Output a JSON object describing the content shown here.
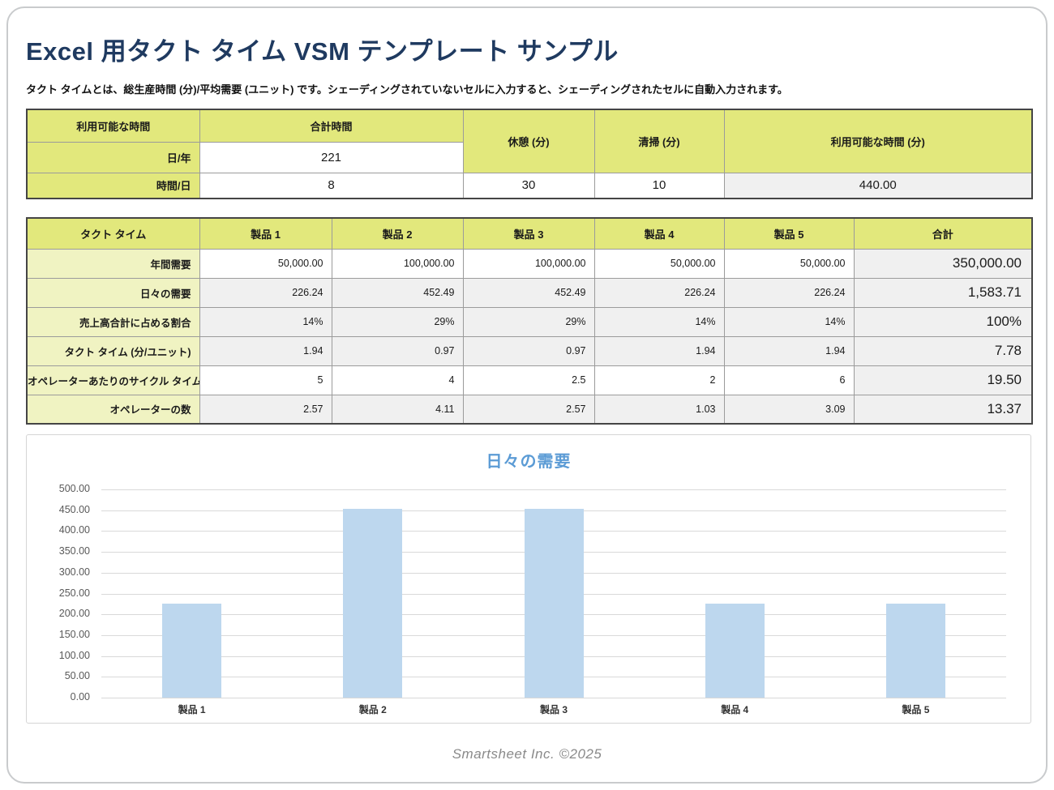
{
  "page": {
    "title": "Excel 用タクト タイム VSM テンプレート サンプル",
    "subtitle": "タクト タイムとは、総生産時間 (分)/平均需要 (ユニット) です。シェーディングされていないセルに入力すると、シェーディングされたセルに自動入力されます。",
    "footer": "Smartsheet Inc. ©2025"
  },
  "colors": {
    "title_navy": "#1f3a60",
    "header_green": "#e2e87c",
    "label_pale_yellow": "#f0f3c2",
    "shaded_gray": "#f0f0f0",
    "bar_blue": "#bdd7ee",
    "chart_title_blue": "#5b9bd5",
    "grid_gray": "#d9d9d9"
  },
  "availability_table": {
    "corner_header": "利用可能な時間",
    "total_time_header": "合計時間",
    "break_header": "休憩 (分)",
    "cleaning_header": "清掃 (分)",
    "available_header": "利用可能な時間 (分)",
    "days_per_year_label": "日/年",
    "days_per_year_value": "221",
    "hours_per_day_label": "時間/日",
    "hours_per_day_value": "8",
    "break_value": "30",
    "cleaning_value": "10",
    "available_value": "440.00"
  },
  "takt_table": {
    "headers": [
      "タクト タイム",
      "製品 1",
      "製品 2",
      "製品 3",
      "製品 4",
      "製品 5",
      "合計"
    ],
    "rows": [
      {
        "label": "年間需要",
        "values": [
          "50,000.00",
          "100,000.00",
          "100,000.00",
          "50,000.00",
          "50,000.00"
        ],
        "total": "350,000.00",
        "shaded": false
      },
      {
        "label": "日々の需要",
        "values": [
          "226.24",
          "452.49",
          "452.49",
          "226.24",
          "226.24"
        ],
        "total": "1,583.71",
        "shaded": true
      },
      {
        "label": "売上高合計に占める割合",
        "values": [
          "14%",
          "29%",
          "29%",
          "14%",
          "14%"
        ],
        "total": "100%",
        "shaded": true
      },
      {
        "label": "タクト タイム (分/ユニット)",
        "values": [
          "1.94",
          "0.97",
          "0.97",
          "1.94",
          "1.94"
        ],
        "total": "7.78",
        "shaded": true
      },
      {
        "label": "オペレーターあたりのサイクル タイム",
        "values": [
          "5",
          "4",
          "2.5",
          "2",
          "6"
        ],
        "total": "19.50",
        "shaded": false
      },
      {
        "label": "オペレーターの数",
        "values": [
          "2.57",
          "4.11",
          "2.57",
          "1.03",
          "3.09"
        ],
        "total": "13.37",
        "shaded": true
      }
    ]
  },
  "chart_data": {
    "type": "bar",
    "title": "日々の需要",
    "categories": [
      "製品 1",
      "製品 2",
      "製品 3",
      "製品 4",
      "製品 5"
    ],
    "values": [
      226.24,
      452.49,
      452.49,
      226.24,
      226.24
    ],
    "ylim": [
      0,
      500
    ],
    "ytick_step": 50,
    "ytick_labels": [
      "0.00",
      "50.00",
      "100.00",
      "150.00",
      "200.00",
      "250.00",
      "300.00",
      "350.00",
      "400.00",
      "450.00",
      "500.00"
    ],
    "grid": true,
    "legend": false,
    "bar_color": "#bdd7ee",
    "xlabel": "",
    "ylabel": ""
  }
}
